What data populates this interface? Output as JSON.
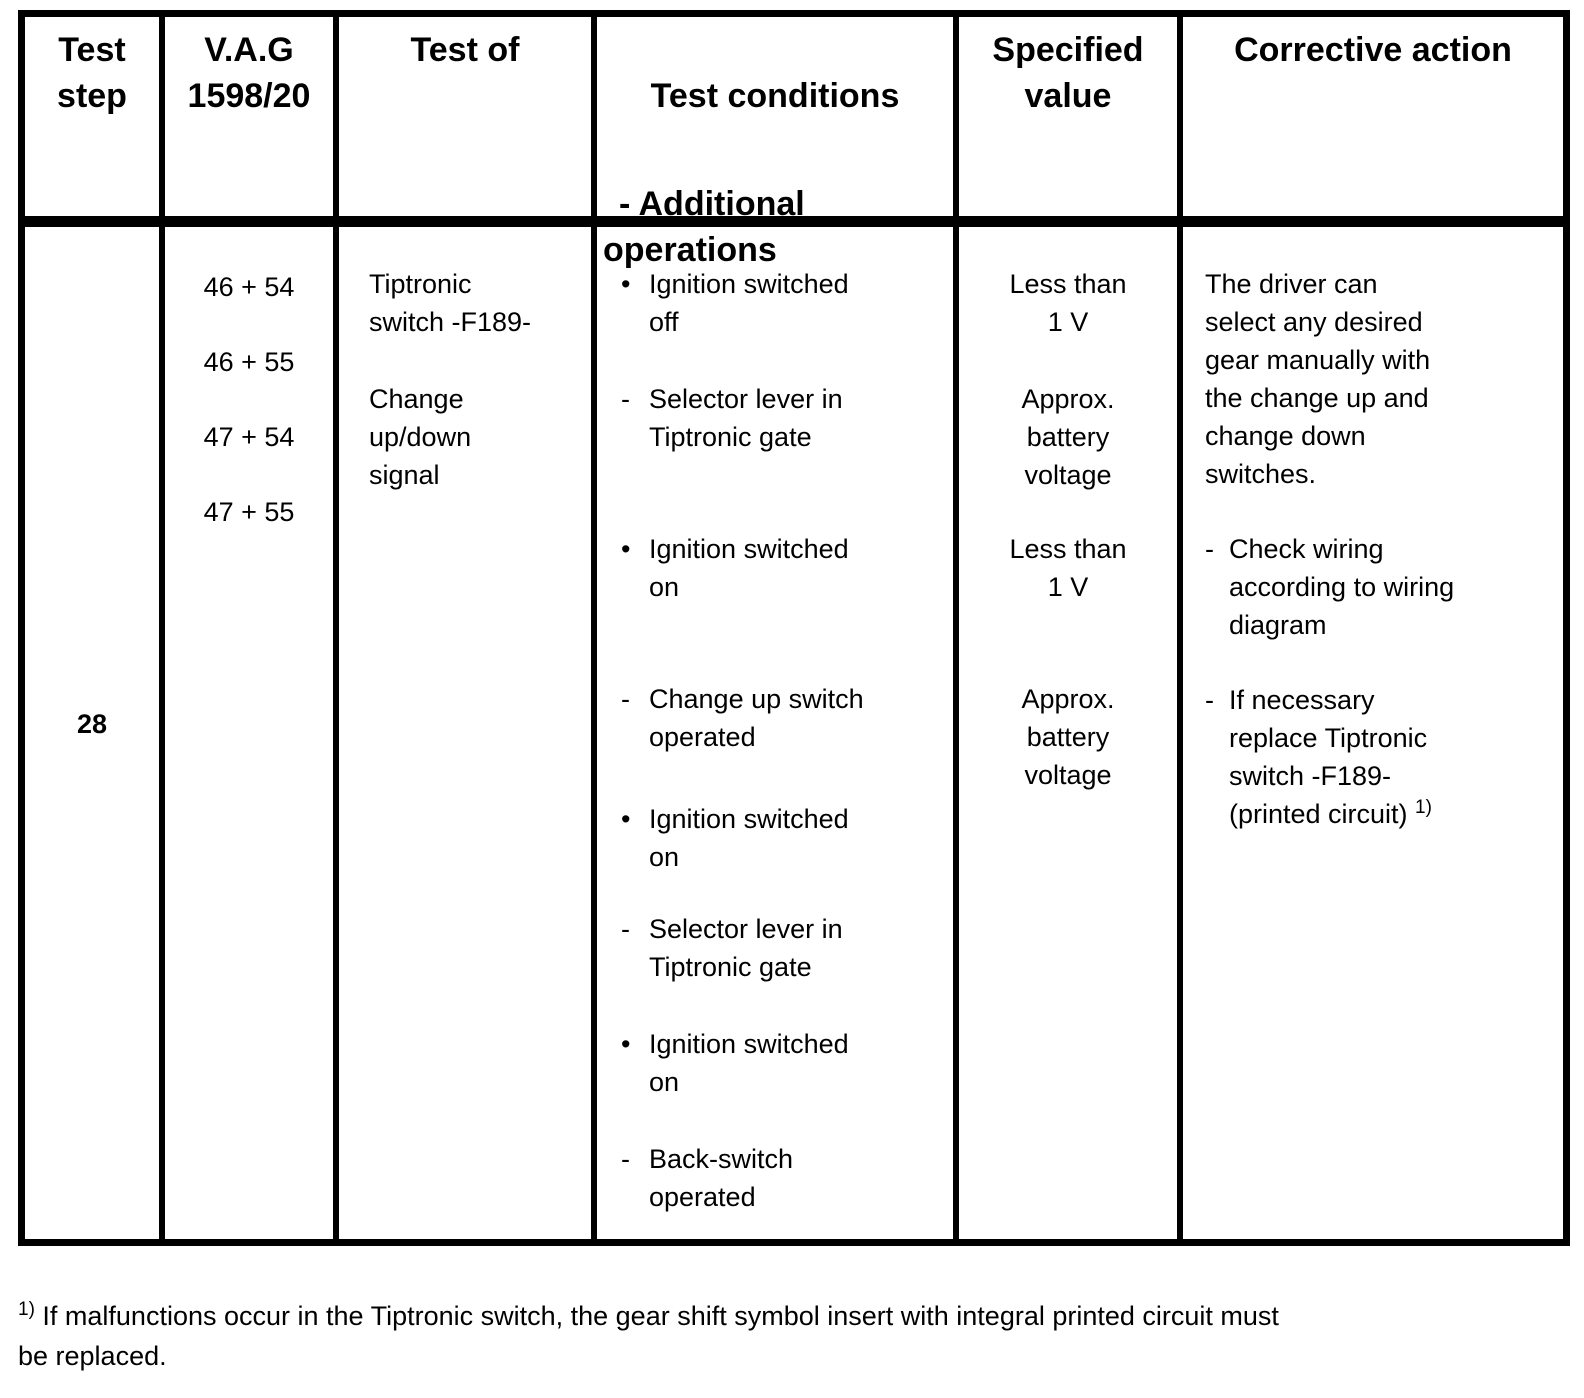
{
  "header": {
    "test_step": "Test\nstep",
    "vag": "V.A.G\n1598/20",
    "test_of": "Test of",
    "test_conditions": "Test conditions",
    "additional_operations": "- Additional\noperations",
    "specified_value": "Specified\nvalue",
    "corrective_action": "Corrective action"
  },
  "row": {
    "test_step": "28",
    "vag_tester_displays": [
      "46 + 54",
      "46 + 55",
      "47 + 54",
      "47 + 55"
    ],
    "test_of": [
      "Tiptronic\nswitch -F189-",
      "Change\nup/down\nsignal"
    ],
    "test_conditions": [
      {
        "marker": "•",
        "text": "Ignition switched\noff"
      },
      {
        "marker": "-",
        "text": "Selector lever in\nTiptronic gate"
      },
      {
        "marker": "•",
        "text": "Ignition switched\non"
      },
      {
        "marker": "-",
        "text": "Change up switch\noperated"
      },
      {
        "marker": "•",
        "text": "Ignition switched\non"
      },
      {
        "marker": "-",
        "text": "Selector lever in\nTiptronic gate"
      },
      {
        "marker": "•",
        "text": "Ignition switched\non"
      },
      {
        "marker": "-",
        "text": "Back-switch\noperated"
      }
    ],
    "specified_values": [
      "Less than\n1 V",
      "Approx.\nbattery\nvoltage",
      "Less than\n1 V",
      "Approx.\nbattery\nvoltage"
    ],
    "corrective_action": {
      "intro": "The driver can\nselect any desired\ngear manually with\nthe change up and\nchange down\nswitches.",
      "items": [
        {
          "marker": "-",
          "text": "Check wiring\naccording to wiring\ndiagram",
          "footnote_ref": ""
        },
        {
          "marker": "-",
          "text": "If necessary\nreplace Tiptronic\nswitch -F189-\n(printed circuit) ",
          "footnote_ref": "1)"
        }
      ]
    }
  },
  "footnote": {
    "ref": "1)",
    "text": " If malfunctions occur in the Tiptronic switch, the gear shift symbol insert with integral printed circuit must\nbe replaced."
  }
}
